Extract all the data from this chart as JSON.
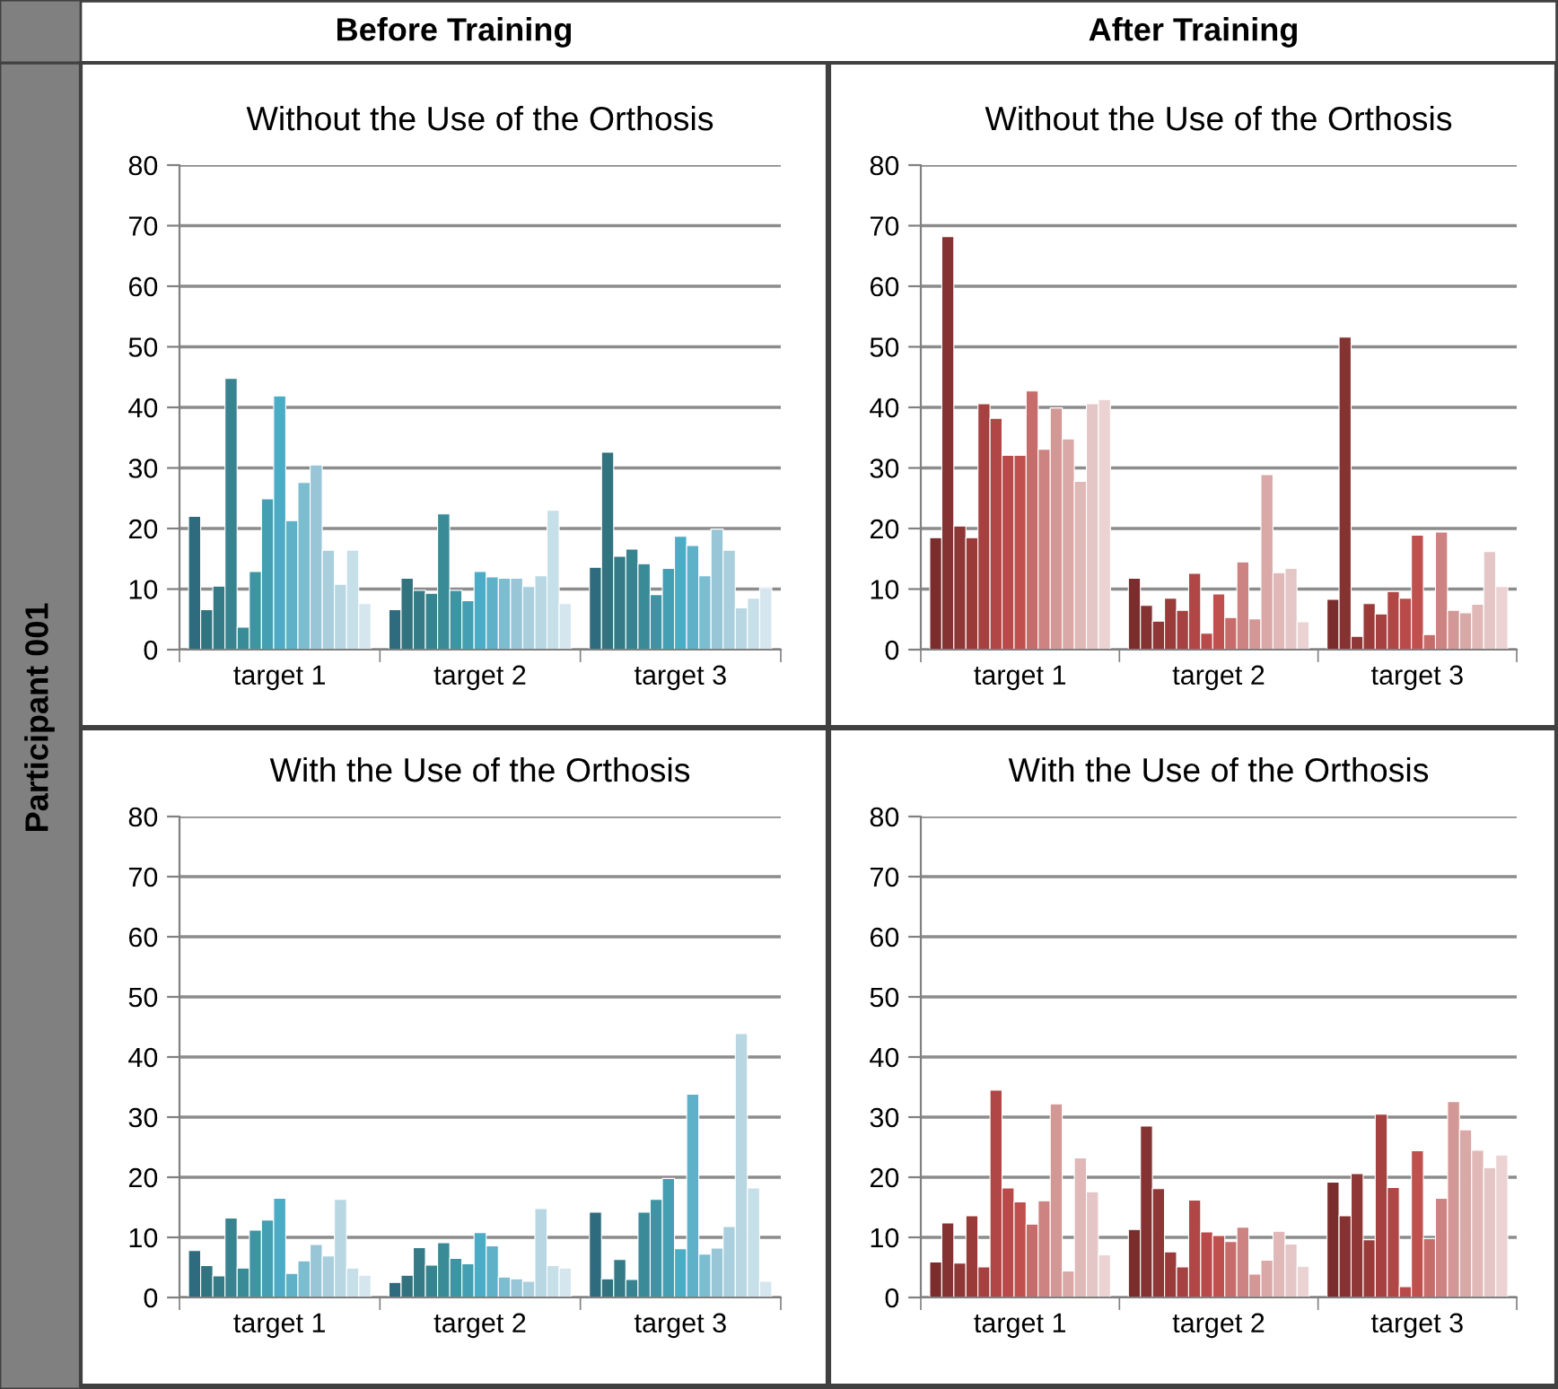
{
  "chart_data": [
    {
      "type": "bar",
      "title": "Without the Use of the Orthosis",
      "annotations": [
        "Before Training",
        "Participant 001"
      ],
      "categories": [
        "target 1",
        "target 2",
        "target 3"
      ],
      "ylim": [
        0,
        80
      ],
      "yticks": [
        0,
        10,
        20,
        30,
        40,
        50,
        60,
        70,
        80
      ],
      "grid": "y",
      "series": [
        {
          "color": "#2e6b7e",
          "values": [
            22,
            6.6,
            13.6
          ]
        },
        {
          "color": "#31737f",
          "values": [
            6.6,
            11.8,
            32.6
          ]
        },
        {
          "color": "#347b87",
          "values": [
            10.5,
            9.8,
            15.4
          ]
        },
        {
          "color": "#37838f",
          "values": [
            44.8,
            9.3,
            16.6
          ]
        },
        {
          "color": "#3a8b98",
          "values": [
            3.7,
            22.4,
            14.2
          ]
        },
        {
          "color": "#3e94a3",
          "values": [
            12.9,
            9.8,
            9.1
          ]
        },
        {
          "color": "#449fb3",
          "values": [
            24.9,
            8.1,
            13.4
          ]
        },
        {
          "color": "#4bacc6",
          "values": [
            41.9,
            12.9,
            18.7
          ]
        },
        {
          "color": "#5fb1c8",
          "values": [
            21.3,
            12,
            17.2
          ]
        },
        {
          "color": "#7dbdd0",
          "values": [
            27.6,
            11.8,
            12.2
          ]
        },
        {
          "color": "#98c6d6",
          "values": [
            30.5,
            11.8,
            19.9
          ]
        },
        {
          "color": "#a9cfdc",
          "values": [
            16.4,
            10.4,
            16.4
          ]
        },
        {
          "color": "#b8d7e2",
          "values": [
            10.8,
            12.2,
            6.9
          ]
        },
        {
          "color": "#c6dfe8",
          "values": [
            16.4,
            23,
            8.5
          ]
        },
        {
          "color": "#d5e6ee",
          "values": [
            7.6,
            7.6,
            10.2
          ]
        }
      ]
    },
    {
      "type": "bar",
      "title": "Without the Use of the Orthosis",
      "annotations": [
        "After Training"
      ],
      "categories": [
        "target 1",
        "target 2",
        "target 3"
      ],
      "ylim": [
        0,
        80
      ],
      "yticks": [
        0,
        10,
        20,
        30,
        40,
        50,
        60,
        70,
        80
      ],
      "grid": "y",
      "series": [
        {
          "color": "#7b2c2c",
          "values": [
            18.5,
            11.8,
            8.3
          ]
        },
        {
          "color": "#853232",
          "values": [
            68.2,
            7.3,
            51.6
          ]
        },
        {
          "color": "#8f3636",
          "values": [
            20.4,
            4.7,
            2.2
          ]
        },
        {
          "color": "#9a3b3a",
          "values": [
            18.5,
            8.5,
            7.6
          ]
        },
        {
          "color": "#a54140",
          "values": [
            40.6,
            6.5,
            5.9
          ]
        },
        {
          "color": "#b04645",
          "values": [
            38.2,
            12.6,
            9.6
          ]
        },
        {
          "color": "#b84b49",
          "values": [
            32.1,
            2.7,
            8.5
          ]
        },
        {
          "color": "#c0504d",
          "values": [
            32.1,
            9.2,
            18.9
          ]
        },
        {
          "color": "#c66c6a",
          "values": [
            42.7,
            5.3,
            2.5
          ]
        },
        {
          "color": "#cc8381",
          "values": [
            33.1,
            14.5,
            19.4
          ]
        },
        {
          "color": "#d39896",
          "values": [
            39.9,
            5.1,
            6.5
          ]
        },
        {
          "color": "#d9a8a7",
          "values": [
            34.8,
            28.9,
            6.1
          ]
        },
        {
          "color": "#dfb8b7",
          "values": [
            27.8,
            12.7,
            7.5
          ]
        },
        {
          "color": "#e4c6c6",
          "values": [
            40.6,
            13.4,
            16.2
          ]
        },
        {
          "color": "#ebd3d3",
          "values": [
            41.3,
            4.6,
            10.4
          ]
        }
      ]
    },
    {
      "type": "bar",
      "title": "With the Use of the Orthosis",
      "categories": [
        "target 1",
        "target 2",
        "target 3"
      ],
      "ylim": [
        0,
        80
      ],
      "yticks": [
        0,
        10,
        20,
        30,
        40,
        50,
        60,
        70,
        80
      ],
      "grid": "y",
      "series": [
        {
          "color": "#2e6b7e",
          "values": [
            7.8,
            2.5,
            14.2
          ]
        },
        {
          "color": "#31737f",
          "values": [
            5.3,
            3.7,
            3.1
          ]
        },
        {
          "color": "#347b87",
          "values": [
            3.6,
            8.3,
            6.3
          ]
        },
        {
          "color": "#37838f",
          "values": [
            13.2,
            5.4,
            3
          ]
        },
        {
          "color": "#3a8b98",
          "values": [
            4.9,
            9.1,
            14.2
          ]
        },
        {
          "color": "#3e94a3",
          "values": [
            11.2,
            6.5,
            16.3
          ]
        },
        {
          "color": "#449fb3",
          "values": [
            12.9,
            5.6,
            19.8
          ]
        },
        {
          "color": "#4bacc6",
          "values": [
            16.5,
            10.8,
            8.1
          ]
        },
        {
          "color": "#5fb1c8",
          "values": [
            4,
            8.6,
            33.8
          ]
        },
        {
          "color": "#7dbdd0",
          "values": [
            6.1,
            3.4,
            7.2
          ]
        },
        {
          "color": "#98c6d6",
          "values": [
            8.8,
            3.1,
            8.2
          ]
        },
        {
          "color": "#a9cfdc",
          "values": [
            6.9,
            2.7,
            11.8
          ]
        },
        {
          "color": "#b8d7e2",
          "values": [
            16.3,
            14.8,
            43.9
          ]
        },
        {
          "color": "#c6dfe8",
          "values": [
            4.9,
            5.3,
            18.2
          ]
        },
        {
          "color": "#d5e6ee",
          "values": [
            3.7,
            4.9,
            2.7
          ]
        }
      ]
    },
    {
      "type": "bar",
      "title": "With the Use of the Orthosis",
      "categories": [
        "target 1",
        "target 2",
        "target 3"
      ],
      "ylim": [
        0,
        80
      ],
      "yticks": [
        0,
        10,
        20,
        30,
        40,
        50,
        60,
        70,
        80
      ],
      "grid": "y",
      "series": [
        {
          "color": "#7b2c2c",
          "values": [
            5.9,
            11.3,
            19.2
          ]
        },
        {
          "color": "#853232",
          "values": [
            12.4,
            28.5,
            13.6
          ]
        },
        {
          "color": "#8f3636",
          "values": [
            5.7,
            18.1,
            20.6
          ]
        },
        {
          "color": "#9a3b3a",
          "values": [
            13.6,
            7.6,
            9.6
          ]
        },
        {
          "color": "#a54140",
          "values": [
            5.1,
            5.1,
            30.5
          ]
        },
        {
          "color": "#b04645",
          "values": [
            34.5,
            16.2,
            18.3
          ]
        },
        {
          "color": "#b84b49",
          "values": [
            18.2,
            10.9,
            1.8
          ]
        },
        {
          "color": "#c0504d",
          "values": [
            15.9,
            10.3,
            24.4
          ]
        },
        {
          "color": "#c66c6a",
          "values": [
            12.2,
            9.3,
            9.8
          ]
        },
        {
          "color": "#cc8381",
          "values": [
            16.1,
            11.7,
            16.5
          ]
        },
        {
          "color": "#d39896",
          "values": [
            32.2,
            3.9,
            32.6
          ]
        },
        {
          "color": "#d9a8a7",
          "values": [
            4.4,
            6.2,
            27.9
          ]
        },
        {
          "color": "#dfb8b7",
          "values": [
            23.2,
            11,
            24.5
          ]
        },
        {
          "color": "#e4c6c6",
          "values": [
            17.6,
            8.9,
            21.6
          ]
        },
        {
          "color": "#ebd3d3",
          "values": [
            7.1,
            5.2,
            23.7
          ]
        }
      ]
    }
  ]
}
